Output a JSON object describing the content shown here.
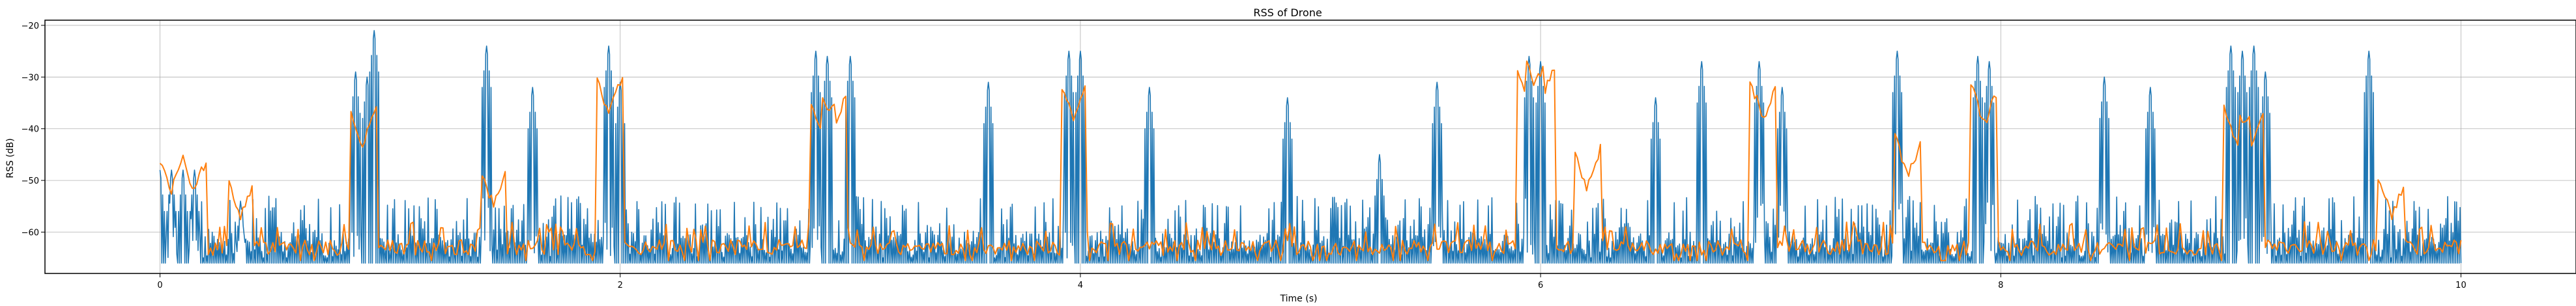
{
  "chart_data": {
    "type": "line",
    "title": "RSS of Drone",
    "xlabel": "Time (s)",
    "ylabel": "RSS (dB)",
    "xlim": [
      -0.5,
      10.5
    ],
    "ylim": [
      -68,
      -19
    ],
    "x_ticks": [
      0,
      2,
      4,
      6,
      8,
      10
    ],
    "y_ticks": [
      -20,
      -30,
      -40,
      -50,
      -60
    ],
    "grid": true,
    "legend": "none",
    "x_range": [
      0,
      10
    ],
    "base_level": -66,
    "series": [
      {
        "color": "#1f77b4",
        "style": "raw",
        "peaks": [
          {
            "x": 0.0,
            "y": -48
          },
          {
            "x": 0.05,
            "y": -48
          },
          {
            "x": 0.1,
            "y": -48
          },
          {
            "x": 0.15,
            "y": -48
          },
          {
            "x": 0.35,
            "y": -54
          },
          {
            "x": 0.85,
            "y": -29
          },
          {
            "x": 0.9,
            "y": -30
          },
          {
            "x": 0.93,
            "y": -21
          },
          {
            "x": 1.42,
            "y": -24
          },
          {
            "x": 1.62,
            "y": -32
          },
          {
            "x": 1.95,
            "y": -24
          },
          {
            "x": 2.0,
            "y": -31
          },
          {
            "x": 2.85,
            "y": -25
          },
          {
            "x": 2.9,
            "y": -26
          },
          {
            "x": 3.0,
            "y": -26
          },
          {
            "x": 3.6,
            "y": -31
          },
          {
            "x": 3.95,
            "y": -25
          },
          {
            "x": 4.0,
            "y": -25
          },
          {
            "x": 4.3,
            "y": -32
          },
          {
            "x": 4.9,
            "y": -34
          },
          {
            "x": 5.3,
            "y": -45
          },
          {
            "x": 5.55,
            "y": -31
          },
          {
            "x": 5.95,
            "y": -26
          },
          {
            "x": 6.0,
            "y": -27
          },
          {
            "x": 6.5,
            "y": -34
          },
          {
            "x": 6.7,
            "y": -27
          },
          {
            "x": 6.95,
            "y": -27
          },
          {
            "x": 7.05,
            "y": -32
          },
          {
            "x": 7.55,
            "y": -25
          },
          {
            "x": 7.9,
            "y": -26
          },
          {
            "x": 7.95,
            "y": -27
          },
          {
            "x": 8.45,
            "y": -30
          },
          {
            "x": 8.65,
            "y": -32
          },
          {
            "x": 9.0,
            "y": -24
          },
          {
            "x": 9.05,
            "y": -25
          },
          {
            "x": 9.1,
            "y": -24
          },
          {
            "x": 9.15,
            "y": -29
          },
          {
            "x": 9.6,
            "y": -25
          }
        ]
      },
      {
        "color": "#ff7f0e",
        "style": "smoothed",
        "peaks": [
          {
            "x": 0.05,
            "y": -52
          },
          {
            "x": 0.15,
            "y": -52
          },
          {
            "x": 0.35,
            "y": -57
          },
          {
            "x": 0.88,
            "y": -43
          },
          {
            "x": 1.45,
            "y": -55
          },
          {
            "x": 1.95,
            "y": -37
          },
          {
            "x": 2.88,
            "y": -41
          },
          {
            "x": 2.93,
            "y": -40
          },
          {
            "x": 3.97,
            "y": -38
          },
          {
            "x": 5.95,
            "y": -35
          },
          {
            "x": 6.0,
            "y": -35
          },
          {
            "x": 6.2,
            "y": -51
          },
          {
            "x": 6.97,
            "y": -38
          },
          {
            "x": 7.6,
            "y": -49
          },
          {
            "x": 7.93,
            "y": -39
          },
          {
            "x": 9.03,
            "y": -43
          },
          {
            "x": 9.09,
            "y": -43
          },
          {
            "x": 9.7,
            "y": -57
          }
        ]
      }
    ]
  }
}
